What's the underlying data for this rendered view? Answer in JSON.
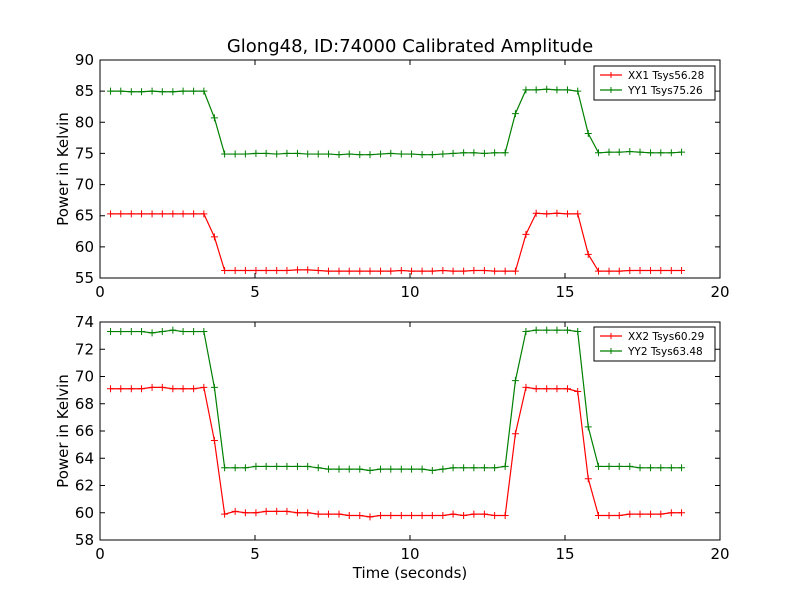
{
  "figure": {
    "title": "Glong48, ID:74000 Calibrated Amplitude"
  },
  "chart_data": [
    {
      "type": "line",
      "title": "Glong48, ID:74000 Calibrated Amplitude",
      "xlabel": "",
      "ylabel": "Power in Kelvin",
      "xlim": [
        0,
        20
      ],
      "ylim": [
        55,
        90
      ],
      "xticks": [
        0,
        5,
        10,
        15,
        20
      ],
      "yticks": [
        55,
        60,
        65,
        70,
        75,
        80,
        85,
        90
      ],
      "grid": false,
      "legend": "top-right",
      "x": [
        0.34,
        0.67,
        1.01,
        1.34,
        1.68,
        2.01,
        2.35,
        2.68,
        3.02,
        3.35,
        3.69,
        4.02,
        4.36,
        4.69,
        5.03,
        5.36,
        5.7,
        6.03,
        6.37,
        6.7,
        7.04,
        7.37,
        7.71,
        8.04,
        8.38,
        8.71,
        9.05,
        9.38,
        9.72,
        10.05,
        10.39,
        10.72,
        11.06,
        11.39,
        11.73,
        12.06,
        12.4,
        12.73,
        13.07,
        13.4,
        13.74,
        14.07,
        14.41,
        14.74,
        15.08,
        15.41,
        15.75,
        16.08,
        16.42,
        16.75,
        17.09,
        17.42,
        17.76,
        18.09,
        18.43,
        18.76
      ],
      "series": [
        {
          "name": "XX1 Tsys56.28",
          "color": "#ff0000",
          "values": [
            65.3,
            65.3,
            65.3,
            65.3,
            65.3,
            65.3,
            65.3,
            65.3,
            65.3,
            65.3,
            61.6,
            56.2,
            56.2,
            56.2,
            56.2,
            56.2,
            56.2,
            56.2,
            56.3,
            56.3,
            56.2,
            56.1,
            56.1,
            56.1,
            56.1,
            56.1,
            56.1,
            56.1,
            56.2,
            56.1,
            56.1,
            56.1,
            56.2,
            56.1,
            56.1,
            56.2,
            56.2,
            56.1,
            56.1,
            56.1,
            62.0,
            65.4,
            65.3,
            65.4,
            65.3,
            65.3,
            58.8,
            56.1,
            56.1,
            56.1,
            56.2,
            56.2,
            56.2,
            56.2,
            56.2,
            56.2
          ]
        },
        {
          "name": "YY1 Tsys75.26",
          "color": "#008000",
          "values": [
            85.0,
            85.0,
            84.9,
            84.9,
            85.0,
            84.9,
            84.9,
            85.0,
            85.0,
            85.0,
            80.7,
            74.9,
            74.9,
            74.9,
            75.0,
            75.0,
            74.9,
            75.0,
            75.0,
            74.9,
            74.9,
            74.9,
            74.8,
            74.9,
            74.8,
            74.8,
            74.9,
            75.0,
            74.9,
            74.9,
            74.8,
            74.8,
            74.9,
            75.0,
            75.1,
            75.1,
            75.0,
            75.1,
            75.1,
            81.4,
            85.2,
            85.2,
            85.3,
            85.2,
            85.2,
            85.0,
            78.2,
            75.1,
            75.2,
            75.2,
            75.3,
            75.2,
            75.1,
            75.1,
            75.1,
            75.2
          ]
        }
      ]
    },
    {
      "type": "line",
      "title": "",
      "xlabel": "Time (seconds)",
      "ylabel": "Power in Kelvin",
      "xlim": [
        0,
        20
      ],
      "ylim": [
        58,
        74
      ],
      "xticks": [
        0,
        5,
        10,
        15,
        20
      ],
      "yticks": [
        58,
        60,
        62,
        64,
        66,
        68,
        70,
        72,
        74
      ],
      "grid": false,
      "legend": "top-right",
      "x": [
        0.34,
        0.67,
        1.01,
        1.34,
        1.68,
        2.01,
        2.35,
        2.68,
        3.02,
        3.35,
        3.69,
        4.02,
        4.36,
        4.69,
        5.03,
        5.36,
        5.7,
        6.03,
        6.37,
        6.7,
        7.04,
        7.37,
        7.71,
        8.04,
        8.38,
        8.71,
        9.05,
        9.38,
        9.72,
        10.05,
        10.39,
        10.72,
        11.06,
        11.39,
        11.73,
        12.06,
        12.4,
        12.73,
        13.07,
        13.4,
        13.74,
        14.07,
        14.41,
        14.74,
        15.08,
        15.41,
        15.75,
        16.08,
        16.42,
        16.75,
        17.09,
        17.42,
        17.76,
        18.09,
        18.43,
        18.76
      ],
      "series": [
        {
          "name": "XX2 Tsys60.29",
          "color": "#ff0000",
          "values": [
            69.1,
            69.1,
            69.1,
            69.1,
            69.2,
            69.2,
            69.1,
            69.1,
            69.1,
            69.2,
            65.3,
            59.9,
            60.1,
            60.0,
            60.0,
            60.1,
            60.1,
            60.1,
            60.0,
            60.0,
            59.9,
            59.9,
            59.9,
            59.8,
            59.8,
            59.7,
            59.8,
            59.8,
            59.8,
            59.8,
            59.8,
            59.8,
            59.8,
            59.9,
            59.8,
            59.9,
            59.9,
            59.8,
            59.8,
            65.8,
            69.2,
            69.1,
            69.1,
            69.1,
            69.1,
            68.9,
            62.5,
            59.8,
            59.8,
            59.8,
            59.9,
            59.9,
            59.9,
            59.9,
            60.0,
            60.0
          ]
        },
        {
          "name": "YY2 Tsys63.48",
          "color": "#008000",
          "values": [
            73.3,
            73.3,
            73.3,
            73.3,
            73.2,
            73.3,
            73.4,
            73.3,
            73.3,
            73.3,
            69.2,
            63.3,
            63.3,
            63.3,
            63.4,
            63.4,
            63.4,
            63.4,
            63.4,
            63.4,
            63.3,
            63.2,
            63.2,
            63.2,
            63.2,
            63.1,
            63.2,
            63.2,
            63.2,
            63.2,
            63.2,
            63.1,
            63.2,
            63.3,
            63.3,
            63.3,
            63.3,
            63.3,
            63.4,
            69.7,
            73.3,
            73.4,
            73.4,
            73.4,
            73.4,
            73.3,
            66.3,
            63.4,
            63.4,
            63.4,
            63.4,
            63.3,
            63.3,
            63.3,
            63.3,
            63.3
          ]
        }
      ]
    }
  ]
}
